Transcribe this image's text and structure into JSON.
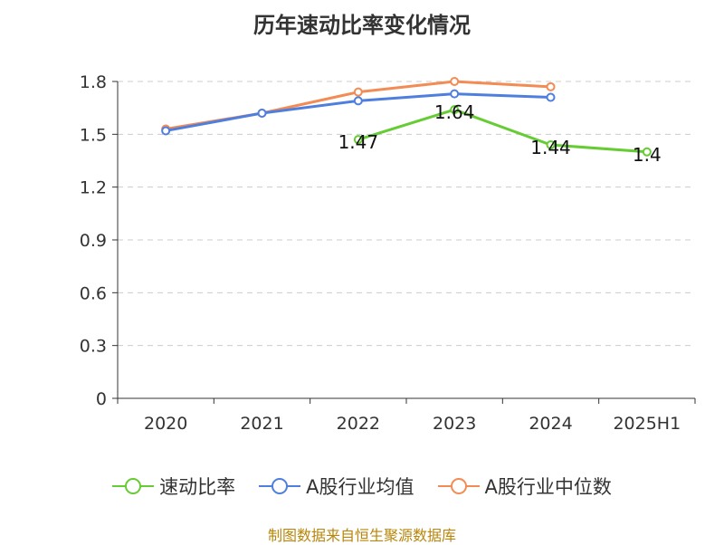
{
  "source": "制图数据来自恒生聚源数据库",
  "chart_data": {
    "type": "line",
    "title": "历年速动比率变化情况",
    "categories": [
      "2020",
      "2021",
      "2022",
      "2023",
      "2024",
      "2025H1"
    ],
    "ylim": [
      0,
      1.8
    ],
    "yticks": [
      "0",
      "0.3",
      "0.6",
      "0.9",
      "1.2",
      "1.5",
      "1.8"
    ],
    "grid": true,
    "legend_position": "bottom",
    "series": [
      {
        "name": "速动比率",
        "color": "#66cc33",
        "values": [
          null,
          null,
          1.47,
          1.64,
          1.44,
          1.4
        ],
        "labels": [
          null,
          null,
          "1.47",
          "1.64",
          "1.44",
          "1.4"
        ]
      },
      {
        "name": "A股行业均值",
        "color": "#4f7fde",
        "values": [
          1.52,
          1.62,
          1.69,
          1.73,
          1.71,
          null
        ]
      },
      {
        "name": "A股行业中位数",
        "color": "#f28c54",
        "values": [
          1.53,
          1.62,
          1.74,
          1.8,
          1.77,
          null
        ]
      }
    ]
  }
}
